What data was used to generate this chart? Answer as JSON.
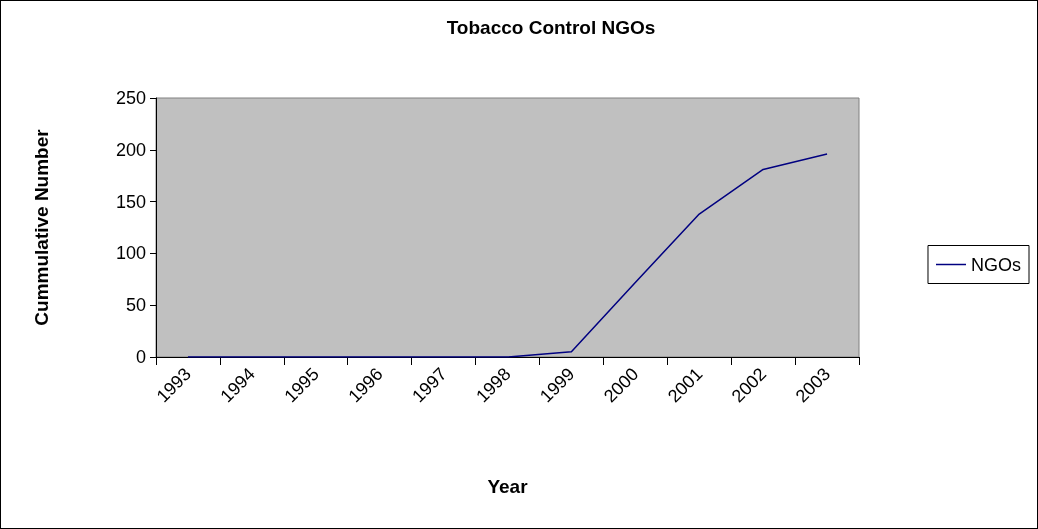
{
  "chart_data": {
    "type": "line",
    "title": "Tobacco Control NGOs",
    "xlabel": "Year",
    "ylabel": "Cummulative Number",
    "categories": [
      "1993",
      "1994",
      "1995",
      "1996",
      "1997",
      "1998",
      "1999",
      "2000",
      "2001",
      "2002",
      "2003"
    ],
    "series": [
      {
        "name": "NGOs",
        "color": "#000080",
        "values": [
          0,
          0,
          0,
          0,
          0,
          0,
          5,
          72,
          138,
          181,
          196
        ]
      }
    ],
    "ylim": [
      0,
      250
    ],
    "yticks": [
      0,
      50,
      100,
      150,
      200,
      250
    ],
    "grid": false,
    "legend": "right",
    "marker": "none",
    "line_style": "solid"
  }
}
